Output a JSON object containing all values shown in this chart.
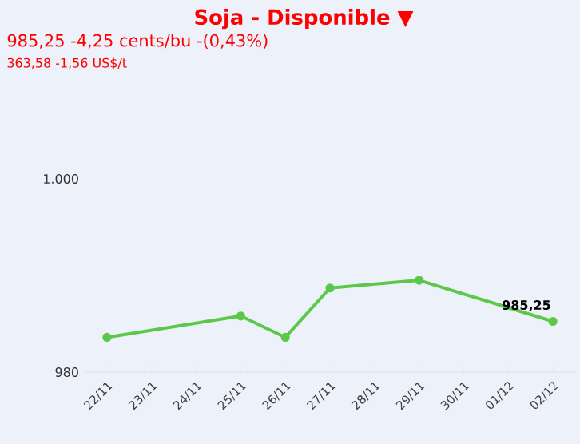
{
  "chart_data": {
    "type": "line",
    "title": "Soja - Disponible ▼",
    "subtitle": "985,25 -4,25 cents/bu -(0,43%)",
    "annotations": [
      "363,58 -1,56 US$/t"
    ],
    "categories": [
      "22/11",
      "23/11",
      "24/11",
      "25/11",
      "26/11",
      "27/11",
      "28/11",
      "29/11",
      "30/11",
      "01/12",
      "02/12"
    ],
    "series": [
      {
        "color": "#5cc84a",
        "values": [
          983.6,
          null,
          null,
          985.8,
          983.6,
          988.7,
          null,
          989.5,
          null,
          null,
          985.25
        ],
        "value_labels": [
          null,
          null,
          null,
          null,
          null,
          null,
          null,
          null,
          null,
          null,
          "985,25"
        ]
      }
    ],
    "ylim": [
      980,
      1000
    ],
    "yticks": [
      {
        "value": 1000,
        "label": "1.000"
      },
      980
    ],
    "marker": "circle"
  }
}
